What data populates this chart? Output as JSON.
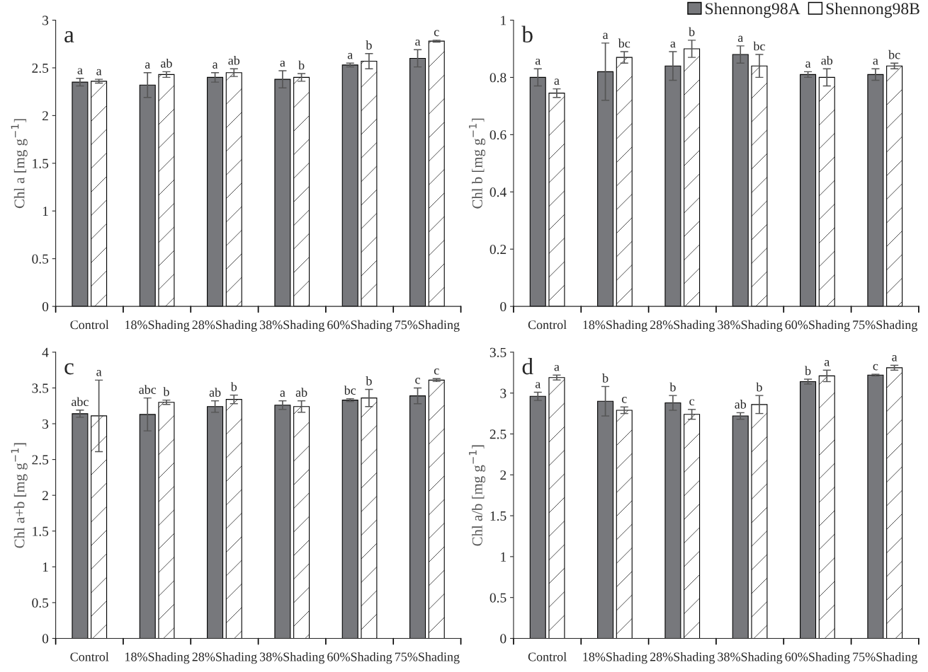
{
  "chart_data": [
    {
      "type": "bar",
      "title": "a",
      "ylabel": "Chl a [mg g$^{−1}$]",
      "categories": [
        "Control",
        "18%Shading",
        "28%Shading",
        "38%Shading",
        "60%Shading",
        "75%Shading"
      ],
      "ylim": [
        0,
        3
      ],
      "yticks": [
        0,
        0.5,
        1,
        1.5,
        2,
        2.5,
        3
      ],
      "series": [
        {
          "color": "#77787c",
          "values": [
            2.35,
            2.32,
            2.4,
            2.38,
            2.53,
            2.6
          ],
          "errors": [
            0.04,
            0.13,
            0.05,
            0.09,
            0.02,
            0.09
          ],
          "value_labels": [
            "a",
            "a",
            "a",
            "a",
            "a",
            "a"
          ]
        },
        {
          "color": "#ffffff",
          "values": [
            2.36,
            2.43,
            2.45,
            2.4,
            2.57,
            2.78
          ],
          "errors": [
            0.02,
            0.03,
            0.04,
            0.04,
            0.08,
            0.01
          ],
          "value_labels": [
            "a",
            "ab",
            "ab",
            "b",
            "b",
            "c"
          ]
        }
      ]
    },
    {
      "type": "bar",
      "title": "b",
      "ylabel": "Chl b [mg g$^{−1}$]",
      "categories": [
        "Control",
        "18%Shading",
        "28%Shading",
        "38%Shading",
        "60%Shading",
        "75%Shading"
      ],
      "ylim": [
        0,
        1
      ],
      "yticks": [
        0,
        0.2,
        0.4,
        0.6,
        0.8,
        1
      ],
      "legend": "top right",
      "series": [
        {
          "name": "Shennong98A",
          "color": "#77787c",
          "values": [
            0.8,
            0.82,
            0.84,
            0.88,
            0.81,
            0.81
          ],
          "errors": [
            0.03,
            0.1,
            0.05,
            0.03,
            0.01,
            0.02
          ],
          "value_labels": [
            "a",
            "a",
            "a",
            "a",
            "a",
            "a"
          ]
        },
        {
          "name": "Shennong98B",
          "color": "#ffffff",
          "values": [
            0.745,
            0.87,
            0.9,
            0.84,
            0.8,
            0.84
          ],
          "errors": [
            0.015,
            0.02,
            0.03,
            0.04,
            0.03,
            0.01
          ],
          "value_labels": [
            "a",
            "bc",
            "b",
            "bc",
            "ab",
            "bc"
          ]
        }
      ]
    },
    {
      "type": "bar",
      "title": "c",
      "ylabel": "Chl a+b [mg g$^{−1}$]",
      "categories": [
        "Control",
        "18%Shading",
        "28%Shading",
        "38%Shading",
        "60%Shading",
        "75%Shading"
      ],
      "ylim": [
        0,
        4
      ],
      "yticks": [
        0,
        0.5,
        1,
        1.5,
        2,
        2.5,
        3,
        3.5,
        4
      ],
      "series": [
        {
          "color": "#77787c",
          "values": [
            3.14,
            3.13,
            3.24,
            3.26,
            3.33,
            3.39
          ],
          "errors": [
            0.05,
            0.23,
            0.08,
            0.06,
            0.02,
            0.11
          ],
          "value_labels": [
            "abc",
            "abc",
            "ab",
            "a",
            "bc",
            "c"
          ]
        },
        {
          "color": "#ffffff",
          "values": [
            3.11,
            3.3,
            3.34,
            3.24,
            3.36,
            3.61
          ],
          "errors": [
            0.5,
            0.03,
            0.06,
            0.08,
            0.12,
            0.02
          ],
          "value_labels": [
            "a",
            "b",
            "b",
            "ab",
            "b",
            "c"
          ]
        }
      ]
    },
    {
      "type": "bar",
      "title": "d",
      "ylabel": "Chl a/b [mg g$^{−1}$]",
      "categories": [
        "Control",
        "18%Shading",
        "28%Shading",
        "38%Shading",
        "60%Shading",
        "75%Shading"
      ],
      "ylim": [
        0,
        3.5
      ],
      "yticks": [
        0,
        0.5,
        1,
        1.5,
        2,
        2.5,
        3,
        3.5
      ],
      "series": [
        {
          "color": "#77787c",
          "values": [
            2.96,
            2.9,
            2.88,
            2.72,
            3.14,
            3.22
          ],
          "errors": [
            0.05,
            0.18,
            0.09,
            0.04,
            0.03,
            0.01
          ],
          "value_labels": [
            "a",
            "b",
            "b",
            "ab",
            "b",
            "c"
          ]
        },
        {
          "color": "#ffffff",
          "values": [
            3.19,
            2.79,
            2.74,
            2.86,
            3.21,
            3.31
          ],
          "errors": [
            0.03,
            0.04,
            0.06,
            0.11,
            0.07,
            0.03
          ],
          "value_labels": [
            "a",
            "c",
            "c",
            "b",
            "a",
            "a"
          ]
        }
      ]
    }
  ]
}
